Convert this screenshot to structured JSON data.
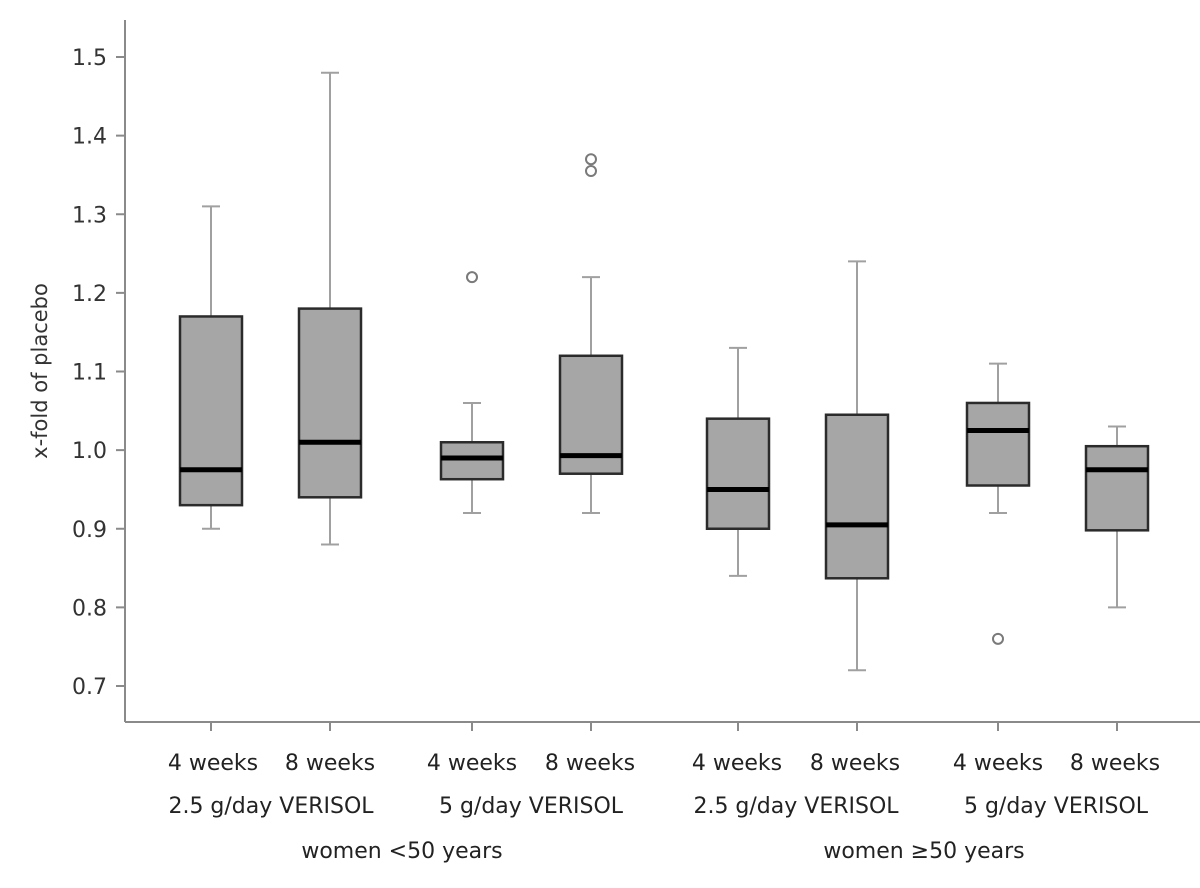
{
  "chart_data": {
    "type": "box",
    "ylabel": "x-fold of placebo",
    "ylim": [
      0.65,
      1.55
    ],
    "yticks": [
      "0.7",
      "0.8",
      "0.9",
      "1.0",
      "1.1",
      "1.2",
      "1.3",
      "1.4",
      "1.5"
    ],
    "ytick_values": [
      0.7,
      0.8,
      0.9,
      1.0,
      1.1,
      1.2,
      1.3,
      1.4,
      1.5
    ],
    "categories": [
      {
        "time": "4 weeks",
        "dose_group": "2.5 g/day VERISOL",
        "age_group": "women <50 years",
        "whisker_low": 0.9,
        "q1": 0.93,
        "median": 0.975,
        "q3": 1.17,
        "whisker_high": 1.31,
        "outliers": []
      },
      {
        "time": "8 weeks",
        "dose_group": "2.5 g/day VERISOL",
        "age_group": "women <50 years",
        "whisker_low": 0.88,
        "q1": 0.94,
        "median": 1.01,
        "q3": 1.18,
        "whisker_high": 1.48,
        "outliers": []
      },
      {
        "time": "4 weeks",
        "dose_group": "5 g/day VERISOL",
        "age_group": "women <50 years",
        "whisker_low": 0.92,
        "q1": 0.963,
        "median": 0.99,
        "q3": 1.01,
        "whisker_high": 1.06,
        "outliers": [
          1.22
        ]
      },
      {
        "time": "8 weeks",
        "dose_group": "5 g/day VERISOL",
        "age_group": "women <50 years",
        "whisker_low": 0.92,
        "q1": 0.97,
        "median": 0.993,
        "q3": 1.12,
        "whisker_high": 1.22,
        "outliers": [
          1.355,
          1.37
        ]
      },
      {
        "time": "4 weeks",
        "dose_group": "2.5 g/day VERISOL",
        "age_group": "women ≥50 years",
        "whisker_low": 0.84,
        "q1": 0.9,
        "median": 0.95,
        "q3": 1.04,
        "whisker_high": 1.13,
        "outliers": []
      },
      {
        "time": "8 weeks",
        "dose_group": "2.5 g/day VERISOL",
        "age_group": "women ≥50 years",
        "whisker_low": 0.72,
        "q1": 0.837,
        "median": 0.905,
        "q3": 1.045,
        "whisker_high": 1.24,
        "outliers": []
      },
      {
        "time": "4 weeks",
        "dose_group": "5 g/day VERISOL",
        "age_group": "women ≥50 years",
        "whisker_low": 0.92,
        "q1": 0.955,
        "median": 1.025,
        "q3": 1.06,
        "whisker_high": 1.11,
        "outliers": [
          0.76
        ]
      },
      {
        "time": "8 weeks",
        "dose_group": "5 g/day VERISOL",
        "age_group": "women ≥50 years",
        "whisker_low": 0.8,
        "q1": 0.898,
        "median": 0.975,
        "q3": 1.005,
        "whisker_high": 1.03,
        "outliers": []
      }
    ],
    "time_labels": [
      "4 weeks",
      "8 weeks",
      "4 weeks",
      "8 weeks",
      "4 weeks",
      "8 weeks",
      "4 weeks",
      "8 weeks"
    ],
    "dose_labels": [
      "2.5 g/day VERISOL",
      "5 g/day VERISOL",
      "2.5 g/day VERISOL",
      "5 g/day VERISOL"
    ],
    "age_labels": [
      "women <50 years",
      "women ≥50 years"
    ],
    "colors": {
      "box_fill": "#a6a6a6",
      "box_edge": "#2b2b2b",
      "median": "#000000",
      "whisker": "#a0a0a0",
      "outlier": "#7a7a7a"
    }
  }
}
